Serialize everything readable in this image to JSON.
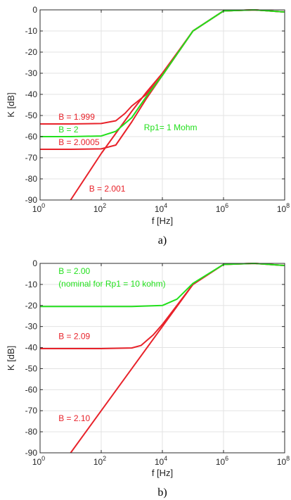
{
  "chart_data": [
    {
      "type": "line",
      "panel_label": "a)",
      "xlabel": "f [Hz]",
      "ylabel": "K [dB]",
      "x_scale": "log",
      "xlim": [
        1,
        100000000
      ],
      "ylim": [
        -90,
        0
      ],
      "grid": true,
      "x_tick_labels": [
        {
          "base": "10",
          "exp": "0",
          "value": 1
        },
        {
          "base": "10",
          "exp": "2",
          "value": 100
        },
        {
          "base": "10",
          "exp": "4",
          "value": 10000
        },
        {
          "base": "10",
          "exp": "6",
          "value": 1000000
        },
        {
          "base": "10",
          "exp": "8",
          "value": 100000000
        }
      ],
      "y_ticks": [
        0,
        -10,
        -20,
        -30,
        -40,
        -50,
        -60,
        -70,
        -80,
        -90
      ],
      "series": [
        {
          "color": "#e8222a",
          "x": [
            1,
            10,
            100,
            300,
            1000,
            3000,
            10000,
            100000,
            1000000,
            10000000,
            100000000
          ],
          "y": [
            -66,
            -66,
            -65.8,
            -64,
            -53,
            -42,
            -31,
            -10,
            -0.5,
            0,
            -1
          ]
        },
        {
          "color": "#e8222a",
          "x": [
            10,
            100,
            1000,
            3000,
            10000,
            100000,
            1000000,
            10000000,
            100000000
          ],
          "y": [
            -90,
            -68,
            -48,
            -39,
            -30,
            -10,
            -0.5,
            0,
            -1
          ]
        },
        {
          "color": "#e8222a",
          "x": [
            1,
            10,
            100,
            300,
            600,
            1000,
            3000,
            10000,
            100000,
            1000000,
            10000000,
            100000000
          ],
          "y": [
            -54,
            -54,
            -53.8,
            -52.5,
            -49,
            -45.5,
            -40,
            -31,
            -10,
            -0.5,
            0,
            -1
          ]
        },
        {
          "color": "#22e01c",
          "x": [
            1,
            10,
            100,
            300,
            1000,
            3000,
            10000,
            100000,
            1000000,
            10000000,
            100000000
          ],
          "y": [
            -60,
            -60,
            -59.7,
            -57.5,
            -51,
            -41,
            -31,
            -10,
            -0.5,
            0,
            -1
          ]
        }
      ],
      "annotations": [
        {
          "text": "B = 1.999",
          "color": "#e8222a",
          "x": 4,
          "y": -52
        },
        {
          "text": "B = 2",
          "color": "#22e01c",
          "x": 4,
          "y": -58
        },
        {
          "text": "B = 2.0005",
          "color": "#e8222a",
          "x": 4,
          "y": -64
        },
        {
          "text": "B = 2.001",
          "color": "#e8222a",
          "x": 40,
          "y": -86
        },
        {
          "text": "Rp1= 1 Mohm",
          "color": "#22e01c",
          "x": 2500,
          "y": -57
        }
      ]
    },
    {
      "type": "line",
      "panel_label": "b)",
      "xlabel": "f [Hz]",
      "ylabel": "K [dB]",
      "x_scale": "log",
      "xlim": [
        1,
        100000000
      ],
      "ylim": [
        -90,
        0
      ],
      "grid": true,
      "x_tick_labels": [
        {
          "base": "10",
          "exp": "0",
          "value": 1
        },
        {
          "base": "10",
          "exp": "2",
          "value": 100
        },
        {
          "base": "10",
          "exp": "4",
          "value": 10000
        },
        {
          "base": "10",
          "exp": "6",
          "value": 1000000
        },
        {
          "base": "10",
          "exp": "8",
          "value": 100000000
        }
      ],
      "y_ticks": [
        0,
        -10,
        -20,
        -30,
        -40,
        -50,
        -60,
        -70,
        -80,
        -90
      ],
      "series": [
        {
          "color": "#e8222a",
          "x": [
            10,
            100,
            1000,
            10000,
            100000,
            1000000,
            10000000,
            100000000
          ],
          "y": [
            -90,
            -70,
            -50,
            -30,
            -10,
            -0.5,
            0,
            -1
          ]
        },
        {
          "color": "#e8222a",
          "x": [
            1,
            10,
            100,
            1000,
            2000,
            5000,
            10000,
            100000,
            1000000,
            10000000,
            100000000
          ],
          "y": [
            -40.5,
            -40.5,
            -40.5,
            -40.2,
            -39,
            -34,
            -29,
            -10,
            -0.5,
            0,
            -1
          ]
        },
        {
          "color": "#22e01c",
          "x": [
            1,
            10,
            100,
            1000,
            10000,
            30000,
            100000,
            1000000,
            10000000,
            100000000
          ],
          "y": [
            -20.5,
            -20.5,
            -20.5,
            -20.5,
            -20,
            -17,
            -9.5,
            -0.5,
            0,
            -1
          ]
        }
      ],
      "annotations": [
        {
          "text": "B = 2.00",
          "color": "#22e01c",
          "x": 4,
          "y": -5
        },
        {
          "text": "(nominal for Rp1 = 10 kohm)",
          "color": "#22e01c",
          "x": 4,
          "y": -11
        },
        {
          "text": "B = 2.09",
          "color": "#e8222a",
          "x": 4,
          "y": -36
        },
        {
          "text": "B = 2.10",
          "color": "#e8222a",
          "x": 4,
          "y": -75
        }
      ]
    }
  ]
}
